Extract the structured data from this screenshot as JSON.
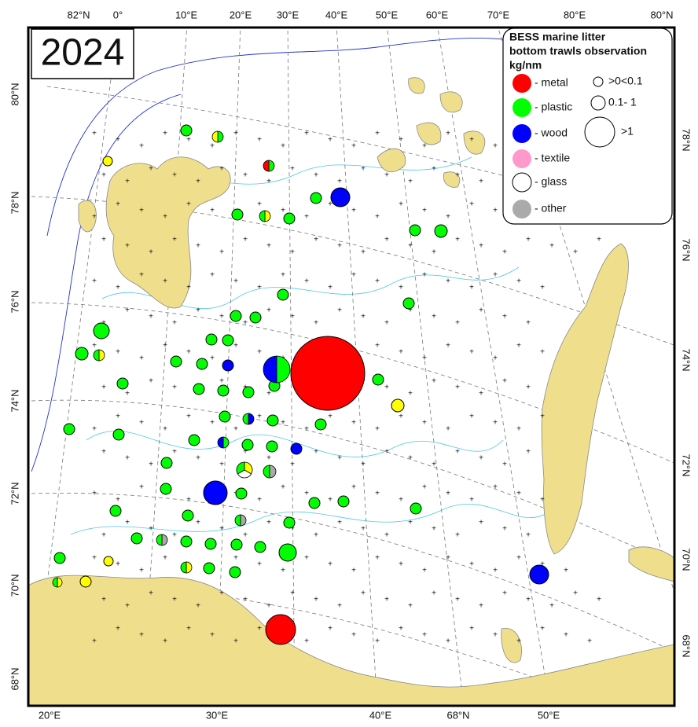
{
  "title": "2024",
  "legend": {
    "title": [
      "BESS marine litter",
      "bottom trawls observation",
      "kg/nm"
    ],
    "items": [
      {
        "label": "- metal",
        "color": "#ff0000"
      },
      {
        "label": "- plastic",
        "color": "#00ff00"
      },
      {
        "label": "- wood",
        "color": "#0000ff"
      },
      {
        "label": "- textile",
        "color": "#ff99cc"
      },
      {
        "label": "- glass",
        "color": "#ffffff"
      },
      {
        "label": "- other",
        "color": "#aaaaaa"
      }
    ],
    "sizes": [
      ">0<0.1",
      "0.1- 1",
      ">1"
    ]
  },
  "labels": {
    "top": [
      "82°N",
      "0°",
      "10°E",
      "20°E",
      "30°E",
      "40°E",
      "50°E",
      "60°E",
      "70°E",
      "80°E",
      "80°N"
    ],
    "left": [
      "80°N",
      "78°N",
      "76°N",
      "74°N",
      "72°N",
      "70°N",
      "68°N"
    ],
    "right": [
      "78°N",
      "76°N",
      "74°N",
      "72°N",
      "70°N",
      "68°N"
    ],
    "bottom": [
      "20°E",
      "30°E",
      "40°E",
      "68°N",
      "50°E"
    ]
  }
}
